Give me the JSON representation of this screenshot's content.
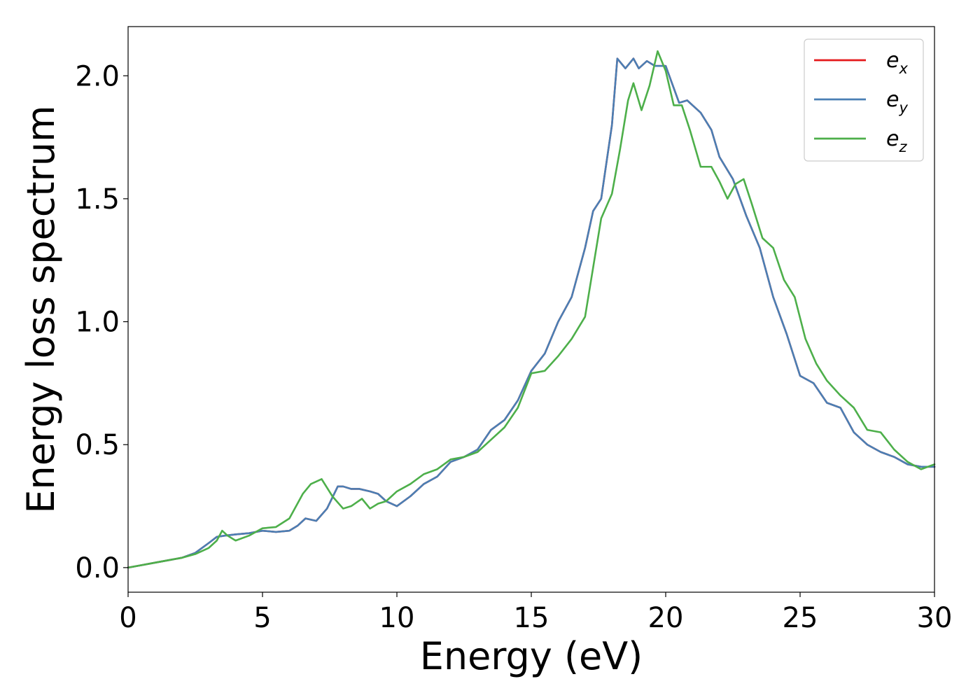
{
  "chart_data": {
    "type": "line",
    "xlabel": "Energy (eV)",
    "ylabel": "Energy loss spectrum",
    "xlim": [
      0,
      30
    ],
    "ylim": [
      -0.1,
      2.2
    ],
    "xticks": [
      "0",
      "5",
      "10",
      "15",
      "20",
      "25",
      "30"
    ],
    "yticks": [
      "0.0",
      "0.5",
      "1.0",
      "1.5",
      "2.0"
    ],
    "grid": false,
    "legend_position": "top-right",
    "legend": [
      {
        "base": "e",
        "sub": "x"
      },
      {
        "base": "e",
        "sub": "y"
      },
      {
        "base": "e",
        "sub": "z"
      }
    ],
    "series": [
      {
        "name": "e_x",
        "color": "#e41a1c",
        "x": [
          0,
          0.5,
          1,
          1.5,
          2,
          2.5,
          3,
          3.3,
          3.6,
          4,
          4.5,
          5,
          5.5,
          6,
          6.3,
          6.6,
          7,
          7.4,
          7.8,
          8,
          8.3,
          8.6,
          9,
          9.3,
          9.6,
          10,
          10.5,
          11,
          11.5,
          12,
          12.5,
          13,
          13.5,
          14,
          14.5,
          15,
          15.5,
          16,
          16.5,
          17,
          17.3,
          17.6,
          18,
          18.2,
          18.5,
          18.8,
          19,
          19.3,
          19.6,
          20,
          20.2,
          20.5,
          20.8,
          21,
          21.3,
          21.7,
          22,
          22.5,
          23,
          23.5,
          24,
          24.5,
          25,
          25.5,
          26,
          26.5,
          27,
          27.5,
          28,
          28.5,
          29,
          29.5,
          30
        ],
        "values": [
          0,
          0.01,
          0.02,
          0.03,
          0.04,
          0.06,
          0.1,
          0.125,
          0.13,
          0.135,
          0.14,
          0.15,
          0.145,
          0.15,
          0.17,
          0.2,
          0.19,
          0.24,
          0.33,
          0.33,
          0.32,
          0.32,
          0.31,
          0.3,
          0.27,
          0.25,
          0.29,
          0.34,
          0.37,
          0.43,
          0.45,
          0.48,
          0.56,
          0.6,
          0.68,
          0.8,
          0.87,
          1.0,
          1.1,
          1.3,
          1.45,
          1.5,
          1.8,
          2.07,
          2.03,
          2.07,
          2.03,
          2.06,
          2.04,
          2.04,
          1.98,
          1.89,
          1.9,
          1.88,
          1.85,
          1.78,
          1.67,
          1.58,
          1.43,
          1.3,
          1.1,
          0.95,
          0.78,
          0.75,
          0.67,
          0.65,
          0.55,
          0.5,
          0.47,
          0.45,
          0.42,
          0.41,
          0.41
        ]
      },
      {
        "name": "e_y",
        "color": "#4a7fb4",
        "x": [
          0,
          0.5,
          1,
          1.5,
          2,
          2.5,
          3,
          3.3,
          3.6,
          4,
          4.5,
          5,
          5.5,
          6,
          6.3,
          6.6,
          7,
          7.4,
          7.8,
          8,
          8.3,
          8.6,
          9,
          9.3,
          9.6,
          10,
          10.5,
          11,
          11.5,
          12,
          12.5,
          13,
          13.5,
          14,
          14.5,
          15,
          15.5,
          16,
          16.5,
          17,
          17.3,
          17.6,
          18,
          18.2,
          18.5,
          18.8,
          19,
          19.3,
          19.6,
          20,
          20.2,
          20.5,
          20.8,
          21,
          21.3,
          21.7,
          22,
          22.5,
          23,
          23.5,
          24,
          24.5,
          25,
          25.5,
          26,
          26.5,
          27,
          27.5,
          28,
          28.5,
          29,
          29.5,
          30
        ],
        "values": [
          0,
          0.01,
          0.02,
          0.03,
          0.04,
          0.06,
          0.1,
          0.125,
          0.13,
          0.135,
          0.14,
          0.15,
          0.145,
          0.15,
          0.17,
          0.2,
          0.19,
          0.24,
          0.33,
          0.33,
          0.32,
          0.32,
          0.31,
          0.3,
          0.27,
          0.25,
          0.29,
          0.34,
          0.37,
          0.43,
          0.45,
          0.48,
          0.56,
          0.6,
          0.68,
          0.8,
          0.87,
          1.0,
          1.1,
          1.3,
          1.45,
          1.5,
          1.8,
          2.07,
          2.03,
          2.07,
          2.03,
          2.06,
          2.04,
          2.04,
          1.98,
          1.89,
          1.9,
          1.88,
          1.85,
          1.78,
          1.67,
          1.58,
          1.43,
          1.3,
          1.1,
          0.95,
          0.78,
          0.75,
          0.67,
          0.65,
          0.55,
          0.5,
          0.47,
          0.45,
          0.42,
          0.41,
          0.41
        ]
      },
      {
        "name": "e_z",
        "color": "#4daf4a",
        "x": [
          0,
          0.5,
          1,
          1.5,
          2,
          2.5,
          3,
          3.3,
          3.5,
          3.7,
          4,
          4.5,
          5,
          5.5,
          6,
          6.5,
          6.8,
          7.2,
          7.6,
          8,
          8.3,
          8.7,
          9,
          9.3,
          9.6,
          10,
          10.5,
          11,
          11.5,
          12,
          12.5,
          13,
          13.5,
          14,
          14.5,
          15,
          15.5,
          16,
          16.5,
          17,
          17.3,
          17.6,
          18,
          18.3,
          18.6,
          18.8,
          19.1,
          19.4,
          19.7,
          20,
          20.3,
          20.6,
          20.9,
          21.3,
          21.7,
          22,
          22.3,
          22.6,
          22.9,
          23.2,
          23.6,
          24,
          24.4,
          24.8,
          25.2,
          25.6,
          26,
          26.5,
          27,
          27.5,
          28,
          28.5,
          29,
          29.5,
          30
        ],
        "values": [
          0,
          0.01,
          0.02,
          0.03,
          0.04,
          0.055,
          0.08,
          0.11,
          0.15,
          0.13,
          0.11,
          0.13,
          0.16,
          0.165,
          0.2,
          0.3,
          0.34,
          0.36,
          0.29,
          0.24,
          0.25,
          0.28,
          0.24,
          0.26,
          0.27,
          0.31,
          0.34,
          0.38,
          0.4,
          0.44,
          0.45,
          0.47,
          0.52,
          0.57,
          0.65,
          0.79,
          0.8,
          0.86,
          0.93,
          1.02,
          1.22,
          1.42,
          1.52,
          1.7,
          1.9,
          1.97,
          1.86,
          1.96,
          2.1,
          2.02,
          1.88,
          1.88,
          1.78,
          1.63,
          1.63,
          1.57,
          1.5,
          1.56,
          1.58,
          1.48,
          1.34,
          1.3,
          1.17,
          1.1,
          0.93,
          0.83,
          0.76,
          0.7,
          0.65,
          0.56,
          0.55,
          0.48,
          0.43,
          0.4,
          0.42
        ]
      }
    ]
  }
}
